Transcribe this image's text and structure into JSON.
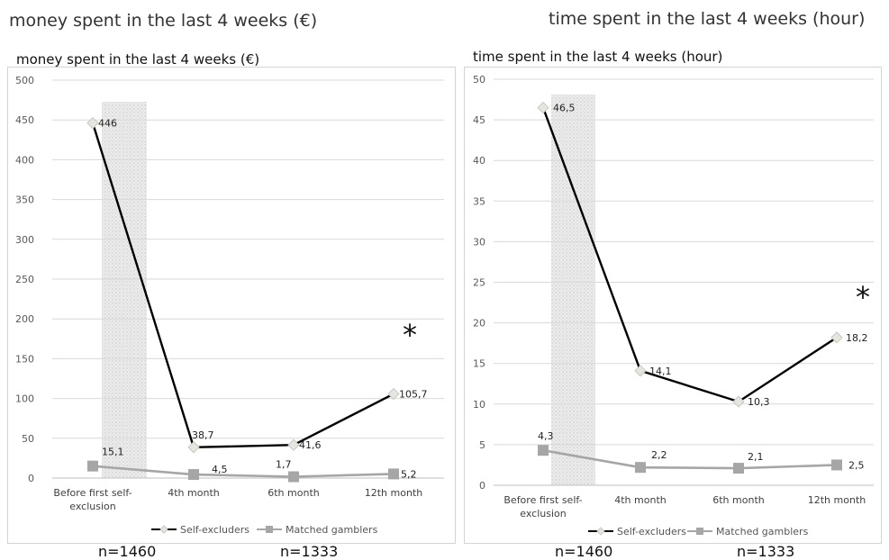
{
  "titles": {
    "left_big": "money spent in the last 4 weeks (€)",
    "right_big": "time spent in the last 4 weeks (hour)"
  },
  "sample_sizes": [
    "n=1460",
    "n=1333",
    "n=1460",
    "n=1333"
  ],
  "chart_data": [
    {
      "type": "line",
      "title": "money spent in the last 4 weeks (€)",
      "categories": [
        "Before first self-exclusion",
        "4th month",
        "6th month",
        "12th month"
      ],
      "category_lines": [
        [
          "Before first self-",
          "exclusion"
        ],
        [
          "4th month"
        ],
        [
          "6th month"
        ],
        [
          "12th month"
        ]
      ],
      "series": [
        {
          "name": "Self-excluders",
          "values": [
            446,
            38.7,
            41.6,
            105.7
          ],
          "labels": [
            "446",
            "38,7",
            "41,6",
            "105,7"
          ],
          "color": "#000000",
          "marker": "diamond"
        },
        {
          "name": "Matched gamblers",
          "values": [
            15.1,
            4.5,
            1.7,
            5.2
          ],
          "labels": [
            "15,1",
            "4,5",
            "1,7",
            "5,2"
          ],
          "color": "#a6a6a6",
          "marker": "square"
        }
      ],
      "ylim": [
        0,
        500
      ],
      "yticks": [
        0,
        50,
        100,
        150,
        200,
        250,
        300,
        350,
        400,
        450,
        500
      ],
      "grid": true,
      "legend": "bottom",
      "annotation": "*"
    },
    {
      "type": "line",
      "title": "time spent in the last 4 weeks (hour)",
      "categories": [
        "Before first self-exclusion",
        "4th month",
        "6th month",
        "12th month"
      ],
      "category_lines": [
        [
          "Before first self-",
          "exclusion"
        ],
        [
          "4th month"
        ],
        [
          "6th month"
        ],
        [
          "12th month"
        ]
      ],
      "series": [
        {
          "name": "Self-excluders",
          "values": [
            46.5,
            14.1,
            10.3,
            18.2
          ],
          "labels": [
            "46,5",
            "14,1",
            "10,3",
            "18,2"
          ],
          "color": "#000000",
          "marker": "diamond"
        },
        {
          "name": "Matched gamblers",
          "values": [
            4.3,
            2.2,
            2.1,
            2.5
          ],
          "labels": [
            "4,3",
            "2,2",
            "2,1",
            "2,5"
          ],
          "color": "#a6a6a6",
          "marker": "square"
        }
      ],
      "ylim": [
        0,
        50
      ],
      "yticks": [
        0,
        5,
        10,
        15,
        20,
        25,
        30,
        35,
        40,
        45,
        50
      ],
      "grid": true,
      "legend": "bottom",
      "annotation": "*"
    }
  ]
}
